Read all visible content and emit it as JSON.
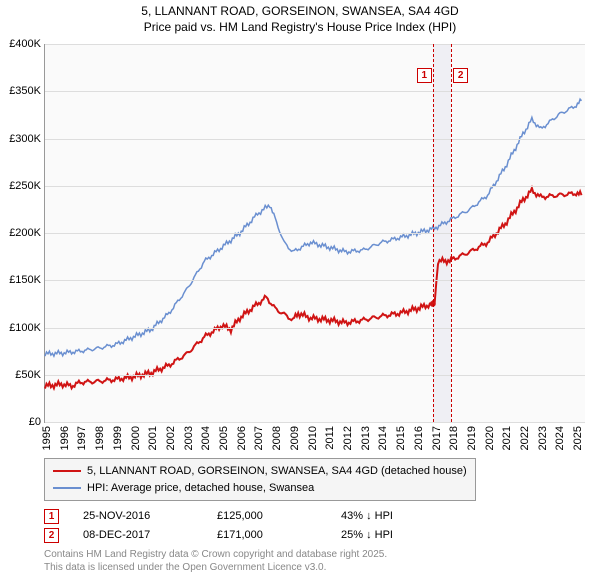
{
  "title": {
    "line1": "5, LLANNANT ROAD, GORSEINON, SWANSEA, SA4 4GD",
    "line2": "Price paid vs. HM Land Registry's House Price Index (HPI)"
  },
  "chart": {
    "type": "line",
    "background_color": "#fafafa",
    "grid_color": "#dddddd",
    "xlim": [
      1995,
      2025.5
    ],
    "ylim": [
      0,
      400000
    ],
    "ytick_step": 50000,
    "yticks": [
      {
        "v": 0,
        "label": "£0"
      },
      {
        "v": 50000,
        "label": "£50K"
      },
      {
        "v": 100000,
        "label": "£100K"
      },
      {
        "v": 150000,
        "label": "£150K"
      },
      {
        "v": 200000,
        "label": "£200K"
      },
      {
        "v": 250000,
        "label": "£250K"
      },
      {
        "v": 300000,
        "label": "£300K"
      },
      {
        "v": 350000,
        "label": "£350K"
      },
      {
        "v": 400000,
        "label": "£400K"
      }
    ],
    "xticks": [
      1995,
      1996,
      1997,
      1998,
      1999,
      2000,
      2001,
      2002,
      2003,
      2004,
      2005,
      2006,
      2007,
      2008,
      2009,
      2010,
      2011,
      2012,
      2013,
      2014,
      2015,
      2016,
      2017,
      2018,
      2019,
      2020,
      2021,
      2022,
      2023,
      2024,
      2025
    ],
    "series": [
      {
        "name": "price_paid",
        "color": "#d01414",
        "line_width": 2,
        "points": [
          [
            1995,
            38000
          ],
          [
            1996,
            40000
          ],
          [
            1996.5,
            38000
          ],
          [
            1997,
            42000
          ],
          [
            1998,
            43000
          ],
          [
            1999,
            45000
          ],
          [
            2000,
            48000
          ],
          [
            2001,
            52000
          ],
          [
            2002,
            60000
          ],
          [
            2003,
            72000
          ],
          [
            2004,
            90000
          ],
          [
            2005,
            102000
          ],
          [
            2005.5,
            98000
          ],
          [
            2006,
            110000
          ],
          [
            2007,
            125000
          ],
          [
            2007.5,
            132000
          ],
          [
            2008,
            120000
          ],
          [
            2009,
            108000
          ],
          [
            2009.3,
            115000
          ],
          [
            2010,
            110000
          ],
          [
            2011,
            108000
          ],
          [
            2012,
            105000
          ],
          [
            2013,
            108000
          ],
          [
            2014,
            112000
          ],
          [
            2015,
            115000
          ],
          [
            2016,
            120000
          ],
          [
            2016.9,
            125000
          ],
          [
            2017.0,
            125000
          ],
          [
            2017.2,
            170000
          ],
          [
            2017.94,
            171000
          ],
          [
            2018,
            172000
          ],
          [
            2019,
            180000
          ],
          [
            2020,
            190000
          ],
          [
            2021,
            210000
          ],
          [
            2022,
            235000
          ],
          [
            2022.5,
            245000
          ],
          [
            2023,
            238000
          ],
          [
            2024,
            240000
          ],
          [
            2025,
            242000
          ],
          [
            2025.3,
            240000
          ]
        ]
      },
      {
        "name": "hpi",
        "color": "#6a8fd0",
        "line_width": 1.5,
        "points": [
          [
            1995,
            72000
          ],
          [
            1996,
            73000
          ],
          [
            1997,
            75000
          ],
          [
            1998,
            78000
          ],
          [
            1999,
            82000
          ],
          [
            2000,
            90000
          ],
          [
            2001,
            98000
          ],
          [
            2002,
            115000
          ],
          [
            2003,
            140000
          ],
          [
            2004,
            170000
          ],
          [
            2005,
            185000
          ],
          [
            2006,
            200000
          ],
          [
            2007,
            220000
          ],
          [
            2007.7,
            230000
          ],
          [
            2008,
            215000
          ],
          [
            2008.5,
            190000
          ],
          [
            2009,
            180000
          ],
          [
            2010,
            190000
          ],
          [
            2011,
            185000
          ],
          [
            2012,
            180000
          ],
          [
            2013,
            182000
          ],
          [
            2014,
            190000
          ],
          [
            2015,
            195000
          ],
          [
            2016,
            200000
          ],
          [
            2017,
            205000
          ],
          [
            2018,
            215000
          ],
          [
            2019,
            225000
          ],
          [
            2020,
            240000
          ],
          [
            2021,
            270000
          ],
          [
            2022,
            305000
          ],
          [
            2022.5,
            320000
          ],
          [
            2023,
            310000
          ],
          [
            2024,
            325000
          ],
          [
            2025,
            335000
          ],
          [
            2025.3,
            340000
          ]
        ]
      }
    ],
    "sale_band": {
      "start": 2016.9,
      "end": 2017.94,
      "fill": "#e8e8f0"
    },
    "sale_markers": [
      {
        "id": "1",
        "x": 2016.9
      },
      {
        "id": "2",
        "x": 2017.94
      }
    ]
  },
  "legend": {
    "items": [
      {
        "color": "#d01414",
        "width": 2,
        "label": "5, LLANNANT ROAD, GORSEINON, SWANSEA, SA4 4GD (detached house)"
      },
      {
        "color": "#6a8fd0",
        "width": 1.5,
        "label": "HPI: Average price, detached house, Swansea"
      }
    ]
  },
  "sales": [
    {
      "marker": "1",
      "date": "25-NOV-2016",
      "price": "£125,000",
      "pct": "43% ↓ HPI"
    },
    {
      "marker": "2",
      "date": "08-DEC-2017",
      "price": "£171,000",
      "pct": "25% ↓ HPI"
    }
  ],
  "footer": {
    "line1": "Contains HM Land Registry data © Crown copyright and database right 2025.",
    "line2": "This data is licensed under the Open Government Licence v3.0."
  }
}
